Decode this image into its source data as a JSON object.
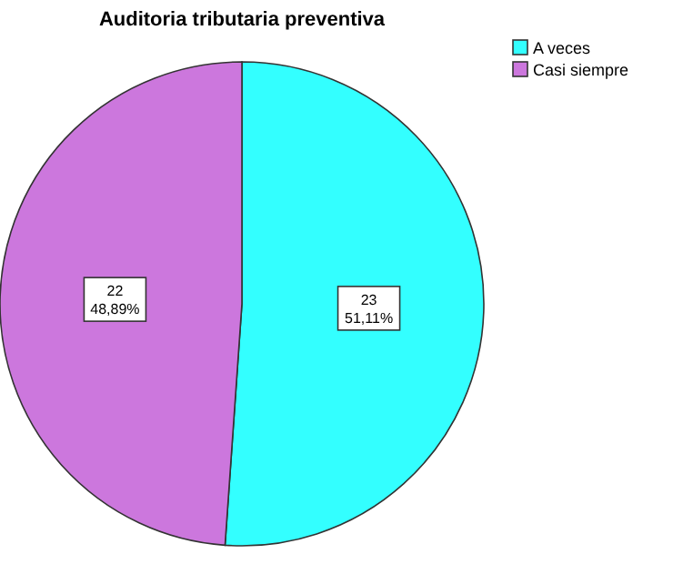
{
  "chart_data": {
    "type": "pie",
    "title": "Auditoria tributaria preventiva",
    "categories": [
      "A veces",
      "Casi siempre"
    ],
    "values": [
      23,
      22
    ],
    "colors": [
      "#33ffff",
      "#cc77dd"
    ],
    "value_labels": [
      "23\n51,11%",
      "22\n48,89%"
    ],
    "legend": "top right"
  }
}
